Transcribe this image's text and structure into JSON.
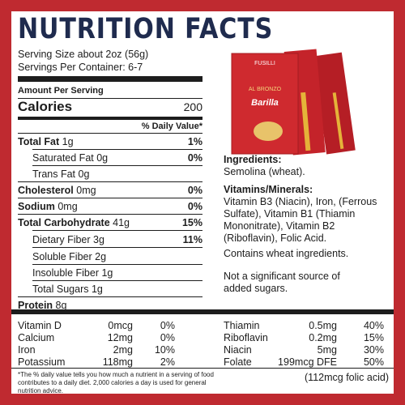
{
  "header": {
    "title": "NUTRITION FACTS",
    "serving_size": "Serving Size about 2oz (56g)",
    "servings_per_container": "Servings Per Container: 6-7"
  },
  "nutrition": {
    "amount_per_serving": "Amount Per Serving",
    "calories_label": "Calories",
    "calories": "200",
    "dv_header": "% Daily Value*",
    "rows": [
      {
        "name": "Total Fat",
        "amount": "1g",
        "dv": "1%"
      },
      {
        "name": "Saturated Fat",
        "amount": "0g",
        "dv": "0%"
      },
      {
        "name": "Trans Fat",
        "amount": "0g"
      },
      {
        "name": "Cholesterol",
        "amount": "0mg",
        "dv": "0%"
      },
      {
        "name": "Sodium",
        "amount": "0mg",
        "dv": "0%"
      },
      {
        "name": "Total Carbohydrate",
        "amount": "41g",
        "dv": "15%"
      },
      {
        "name": "Dietary Fiber",
        "amount": "3g",
        "dv": "11%"
      },
      {
        "name": "Soluble Fiber",
        "amount": "2g"
      },
      {
        "name": "Insoluble Fiber",
        "amount": "1g"
      },
      {
        "name": "Total Sugars",
        "amount": "1g"
      },
      {
        "name": "Protein",
        "amount": "8g"
      }
    ]
  },
  "product": {
    "shape": "FUSILLI",
    "line": "AL BRONZO",
    "brand": "Barilla"
  },
  "info": {
    "ingredients_heading": "Ingredients:",
    "ingredients": "Semolina (wheat).",
    "vitamins_heading": "Vitamins/Minerals:",
    "vitamins": "Vitamin B3 (Niacin), Iron, (Ferrous Sulfate), Vitamin B1 (Thiamin Mononitrate), Vitamin B2 (Riboflavin), Folic Acid.",
    "contains": "Contains wheat ingredients.",
    "sugar_note": "Not a significant source of added sugars."
  },
  "micronutrients": {
    "left": [
      {
        "name": "Vitamin D",
        "amount": "0mcg",
        "dv": "0%"
      },
      {
        "name": "Calcium",
        "amount": "12mg",
        "dv": "0%"
      },
      {
        "name": "Iron",
        "amount": "2mg",
        "dv": "10%"
      },
      {
        "name": "Potassium",
        "amount": "118mg",
        "dv": "2%"
      }
    ],
    "right": [
      {
        "name": "Thiamin",
        "amount": "0.5mg",
        "dv": "40%"
      },
      {
        "name": "Riboflavin",
        "amount": "0.2mg",
        "dv": "15%"
      },
      {
        "name": "Niacin",
        "amount": "5mg",
        "dv": "30%"
      },
      {
        "name": "Folate",
        "amount": "199mcg DFE",
        "dv": "50%"
      }
    ],
    "folic_note": "(112mcg folic acid)"
  },
  "footnote": "*The % daily value tells you how much a nutrient in a serving of food contributes to a daily diet. 2,000 calories a day is used for general nutrition advice."
}
